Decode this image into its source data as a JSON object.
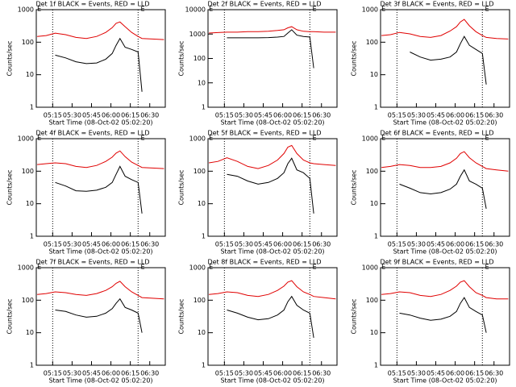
{
  "chart_data": [
    {
      "type": "line",
      "title": "Det 1f BLACK = Events, RED = LLD",
      "xlabel": "Start Time (08-Oct-02 05:02:20)",
      "ylabel": "Counts/sec",
      "log_y": true,
      "xlim": [
        302.33,
        402
      ],
      "ylim": [
        1,
        1000
      ],
      "yticks": [
        1,
        10,
        100,
        1000
      ],
      "xticks": [
        {
          "value": 315,
          "label": "05:15"
        },
        {
          "value": 330,
          "label": "05:30"
        },
        {
          "value": 345,
          "label": "05:45"
        },
        {
          "value": 360,
          "label": "06:00"
        },
        {
          "value": 375,
          "label": "06:15"
        },
        {
          "value": 390,
          "label": "06:30"
        }
      ],
      "vlines": [
        315,
        381
      ],
      "flags": [
        {
          "x": 303,
          "label": "E"
        },
        {
          "x": 383,
          "label": "E"
        }
      ],
      "x": [
        303,
        310,
        317,
        325,
        333,
        341,
        349,
        356,
        361,
        364,
        367,
        371,
        376,
        381,
        384,
        392,
        401
      ],
      "series": [
        {
          "color": "#e00000",
          "values": [
            150,
            160,
            190,
            170,
            140,
            130,
            150,
            200,
            280,
            380,
            420,
            300,
            200,
            150,
            130,
            125,
            120
          ]
        },
        {
          "color": "#000000",
          "values": [
            null,
            null,
            40,
            33,
            25,
            22,
            23,
            30,
            45,
            80,
            130,
            70,
            60,
            50,
            3,
            null,
            null
          ]
        }
      ]
    },
    {
      "type": "line",
      "title": "Det 2f BLACK = Events, RED = LLD",
      "xlabel": "Start Time (08-Oct-02 05:02:20)",
      "ylabel": "Counts/sec",
      "log_y": true,
      "xlim": [
        302.33,
        402
      ],
      "ylim": [
        1,
        10000
      ],
      "yticks": [
        1,
        10,
        100,
        1000,
        10000
      ],
      "xticks": [
        {
          "value": 315,
          "label": "05:15"
        },
        {
          "value": 330,
          "label": "05:30"
        },
        {
          "value": 345,
          "label": "05:45"
        },
        {
          "value": 360,
          "label": "06:00"
        },
        {
          "value": 375,
          "label": "06:15"
        },
        {
          "value": 390,
          "label": "06:30"
        }
      ],
      "vlines": [
        315,
        381
      ],
      "flags": [
        {
          "x": 303,
          "label": "E"
        },
        {
          "x": 383,
          "label": "E"
        }
      ],
      "x": [
        303,
        310,
        317,
        325,
        333,
        341,
        349,
        356,
        361,
        364,
        367,
        371,
        376,
        381,
        384,
        392,
        401
      ],
      "series": [
        {
          "color": "#e00000",
          "values": [
            1100,
            1150,
            1200,
            1200,
            1250,
            1250,
            1300,
            1400,
            1500,
            1800,
            2000,
            1500,
            1300,
            1250,
            1250,
            1200,
            1200
          ]
        },
        {
          "color": "#000000",
          "values": [
            null,
            null,
            700,
            700,
            700,
            700,
            720,
            750,
            800,
            1100,
            1500,
            900,
            800,
            750,
            40,
            null,
            null
          ]
        }
      ]
    },
    {
      "type": "line",
      "title": "Det 3f BLACK = Events, RED = LLD",
      "xlabel": "Start Time (08-Oct-02 05:02:20)",
      "ylabel": "Counts/sec",
      "log_y": true,
      "xlim": [
        302.33,
        402
      ],
      "ylim": [
        1,
        1000
      ],
      "yticks": [
        1,
        10,
        100,
        1000
      ],
      "xticks": [
        {
          "value": 315,
          "label": "05:15"
        },
        {
          "value": 330,
          "label": "05:30"
        },
        {
          "value": 345,
          "label": "05:45"
        },
        {
          "value": 360,
          "label": "06:00"
        },
        {
          "value": 375,
          "label": "06:15"
        },
        {
          "value": 390,
          "label": "06:30"
        }
      ],
      "vlines": [
        315,
        381
      ],
      "flags": [
        {
          "x": 303,
          "label": "E"
        },
        {
          "x": 383,
          "label": "E"
        }
      ],
      "x": [
        303,
        310,
        317,
        325,
        333,
        341,
        349,
        356,
        361,
        364,
        367,
        371,
        376,
        381,
        384,
        392,
        401
      ],
      "series": [
        {
          "color": "#e00000",
          "values": [
            160,
            170,
            200,
            180,
            150,
            140,
            160,
            220,
            300,
            420,
            500,
            320,
            210,
            160,
            140,
            130,
            125
          ]
        },
        {
          "color": "#000000",
          "values": [
            null,
            null,
            null,
            50,
            35,
            28,
            30,
            35,
            50,
            90,
            150,
            80,
            60,
            45,
            5,
            null,
            null
          ]
        }
      ]
    },
    {
      "type": "line",
      "title": "Det 4f BLACK = Events, RED = LLD",
      "xlabel": "Start Time (08-Oct-02 05:02:20)",
      "ylabel": "Counts/sec",
      "log_y": true,
      "xlim": [
        302.33,
        402
      ],
      "ylim": [
        1,
        1000
      ],
      "yticks": [
        1,
        10,
        100,
        1000
      ],
      "xticks": [
        {
          "value": 315,
          "label": "05:15"
        },
        {
          "value": 330,
          "label": "05:30"
        },
        {
          "value": 345,
          "label": "05:45"
        },
        {
          "value": 360,
          "label": "06:00"
        },
        {
          "value": 375,
          "label": "06:15"
        },
        {
          "value": 390,
          "label": "06:30"
        }
      ],
      "vlines": [
        315,
        381
      ],
      "flags": [
        {
          "x": 303,
          "label": "E"
        },
        {
          "x": 383,
          "label": "E"
        }
      ],
      "x": [
        303,
        310,
        317,
        325,
        333,
        341,
        349,
        356,
        361,
        364,
        367,
        371,
        376,
        381,
        384,
        392,
        401
      ],
      "series": [
        {
          "color": "#e00000",
          "values": [
            160,
            170,
            180,
            170,
            140,
            130,
            150,
            200,
            270,
            360,
            420,
            280,
            190,
            150,
            130,
            125,
            120
          ]
        },
        {
          "color": "#000000",
          "values": [
            null,
            null,
            45,
            35,
            25,
            24,
            26,
            32,
            45,
            80,
            140,
            70,
            55,
            45,
            5,
            null,
            null
          ]
        }
      ]
    },
    {
      "type": "line",
      "title": "Det 5f BLACK = Events, RED = LLD",
      "xlabel": "Start Time (08-Oct-02 05:02:20)",
      "ylabel": "Counts/sec",
      "log_y": true,
      "xlim": [
        302.33,
        402
      ],
      "ylim": [
        1,
        1000
      ],
      "yticks": [
        1,
        10,
        100,
        1000
      ],
      "xticks": [
        {
          "value": 315,
          "label": "05:15"
        },
        {
          "value": 330,
          "label": "05:30"
        },
        {
          "value": 345,
          "label": "05:45"
        },
        {
          "value": 360,
          "label": "06:00"
        },
        {
          "value": 375,
          "label": "06:15"
        },
        {
          "value": 390,
          "label": "06:30"
        }
      ],
      "vlines": [
        315,
        381
      ],
      "flags": [
        {
          "x": 303,
          "label": "E"
        },
        {
          "x": 383,
          "label": "E"
        }
      ],
      "x": [
        303,
        310,
        317,
        325,
        333,
        341,
        349,
        356,
        361,
        364,
        367,
        371,
        376,
        381,
        384,
        392,
        401
      ],
      "series": [
        {
          "color": "#e00000",
          "values": [
            180,
            200,
            260,
            200,
            140,
            120,
            150,
            220,
            350,
            550,
            620,
            350,
            220,
            180,
            170,
            160,
            150
          ]
        },
        {
          "color": "#000000",
          "values": [
            null,
            null,
            80,
            70,
            50,
            40,
            45,
            60,
            90,
            170,
            250,
            110,
            90,
            60,
            5,
            null,
            null
          ]
        }
      ]
    },
    {
      "type": "line",
      "title": "Det 6f BLACK = Events, RED = LLD",
      "xlabel": "Start Time (08-Oct-02 05:02:20)",
      "ylabel": "Counts/sec",
      "log_y": true,
      "xlim": [
        302.33,
        402
      ],
      "ylim": [
        1,
        1000
      ],
      "yticks": [
        1,
        10,
        100,
        1000
      ],
      "xticks": [
        {
          "value": 315,
          "label": "05:15"
        },
        {
          "value": 330,
          "label": "05:30"
        },
        {
          "value": 345,
          "label": "05:45"
        },
        {
          "value": 360,
          "label": "06:00"
        },
        {
          "value": 375,
          "label": "06:15"
        },
        {
          "value": 390,
          "label": "06:30"
        }
      ],
      "vlines": [
        315,
        381
      ],
      "flags": [
        {
          "x": 303,
          "label": "E"
        },
        {
          "x": 383,
          "label": "E"
        }
      ],
      "x": [
        303,
        310,
        317,
        325,
        333,
        341,
        349,
        356,
        361,
        364,
        367,
        371,
        376,
        381,
        384,
        392,
        401
      ],
      "series": [
        {
          "color": "#e00000",
          "values": [
            130,
            140,
            160,
            150,
            130,
            130,
            140,
            180,
            250,
            350,
            400,
            260,
            180,
            140,
            120,
            110,
            100
          ]
        },
        {
          "color": "#000000",
          "values": [
            null,
            null,
            40,
            30,
            22,
            20,
            22,
            28,
            40,
            70,
            110,
            50,
            40,
            30,
            7,
            null,
            null
          ]
        }
      ]
    },
    {
      "type": "line",
      "title": "Det 7f BLACK = Events, RED = LLD",
      "xlabel": "Start Time (08-Oct-02 05:02:20)",
      "ylabel": "Counts/sec",
      "log_y": true,
      "xlim": [
        302.33,
        402
      ],
      "ylim": [
        1,
        1000
      ],
      "yticks": [
        1,
        10,
        100,
        1000
      ],
      "xticks": [
        {
          "value": 315,
          "label": "05:15"
        },
        {
          "value": 330,
          "label": "05:30"
        },
        {
          "value": 345,
          "label": "05:45"
        },
        {
          "value": 360,
          "label": "06:00"
        },
        {
          "value": 375,
          "label": "06:15"
        },
        {
          "value": 390,
          "label": "06:30"
        }
      ],
      "vlines": [
        315,
        381
      ],
      "flags": [
        {
          "x": 303,
          "label": "E"
        },
        {
          "x": 383,
          "label": "E"
        }
      ],
      "x": [
        303,
        310,
        317,
        325,
        333,
        341,
        349,
        356,
        361,
        364,
        367,
        371,
        376,
        381,
        384,
        392,
        401
      ],
      "series": [
        {
          "color": "#e00000",
          "values": [
            150,
            160,
            180,
            170,
            150,
            140,
            160,
            200,
            260,
            330,
            380,
            260,
            180,
            140,
            120,
            115,
            110
          ]
        },
        {
          "color": "#000000",
          "values": [
            null,
            null,
            50,
            45,
            35,
            30,
            32,
            40,
            55,
            80,
            110,
            60,
            50,
            40,
            10,
            null,
            null
          ]
        }
      ]
    },
    {
      "type": "line",
      "title": "Det 8f BLACK = Events, RED = LLD",
      "xlabel": "Start Time (08-Oct-02 05:02:20)",
      "ylabel": "Counts/sec",
      "log_y": true,
      "xlim": [
        302.33,
        402
      ],
      "ylim": [
        1,
        1000
      ],
      "yticks": [
        1,
        10,
        100,
        1000
      ],
      "xticks": [
        {
          "value": 315,
          "label": "05:15"
        },
        {
          "value": 330,
          "label": "05:30"
        },
        {
          "value": 345,
          "label": "05:45"
        },
        {
          "value": 360,
          "label": "06:00"
        },
        {
          "value": 375,
          "label": "06:15"
        },
        {
          "value": 390,
          "label": "06:30"
        }
      ],
      "vlines": [
        315,
        381
      ],
      "flags": [
        {
          "x": 303,
          "label": "E"
        },
        {
          "x": 383,
          "label": "E"
        }
      ],
      "x": [
        303,
        310,
        317,
        325,
        333,
        341,
        349,
        356,
        361,
        364,
        367,
        371,
        376,
        381,
        384,
        392,
        401
      ],
      "series": [
        {
          "color": "#e00000",
          "values": [
            150,
            160,
            180,
            170,
            140,
            130,
            150,
            200,
            270,
            360,
            400,
            260,
            180,
            150,
            130,
            120,
            110
          ]
        },
        {
          "color": "#000000",
          "values": [
            null,
            null,
            50,
            40,
            30,
            25,
            27,
            35,
            50,
            90,
            130,
            70,
            50,
            40,
            7,
            null,
            null
          ]
        }
      ]
    },
    {
      "type": "line",
      "title": "Det 9f BLACK = Events, RED = LLD",
      "xlabel": "Start Time (08-Oct-02 05:02:20)",
      "ylabel": "Counts/sec",
      "log_y": true,
      "xlim": [
        302.33,
        402
      ],
      "ylim": [
        1,
        1000
      ],
      "yticks": [
        1,
        10,
        100,
        1000
      ],
      "xticks": [
        {
          "value": 315,
          "label": "05:15"
        },
        {
          "value": 330,
          "label": "05:30"
        },
        {
          "value": 345,
          "label": "05:45"
        },
        {
          "value": 360,
          "label": "06:00"
        },
        {
          "value": 375,
          "label": "06:15"
        },
        {
          "value": 390,
          "label": "06:30"
        }
      ],
      "vlines": [
        315,
        381
      ],
      "flags": [
        {
          "x": 303,
          "label": "E"
        },
        {
          "x": 383,
          "label": "E"
        }
      ],
      "x": [
        303,
        310,
        317,
        325,
        333,
        341,
        349,
        356,
        361,
        364,
        367,
        371,
        376,
        381,
        384,
        392,
        401
      ],
      "series": [
        {
          "color": "#e00000",
          "values": [
            150,
            160,
            180,
            170,
            140,
            130,
            150,
            200,
            270,
            360,
            400,
            260,
            170,
            140,
            120,
            110,
            110
          ]
        },
        {
          "color": "#000000",
          "values": [
            null,
            null,
            40,
            35,
            28,
            24,
            26,
            32,
            45,
            80,
            120,
            60,
            45,
            35,
            10,
            null,
            null
          ]
        }
      ]
    }
  ]
}
